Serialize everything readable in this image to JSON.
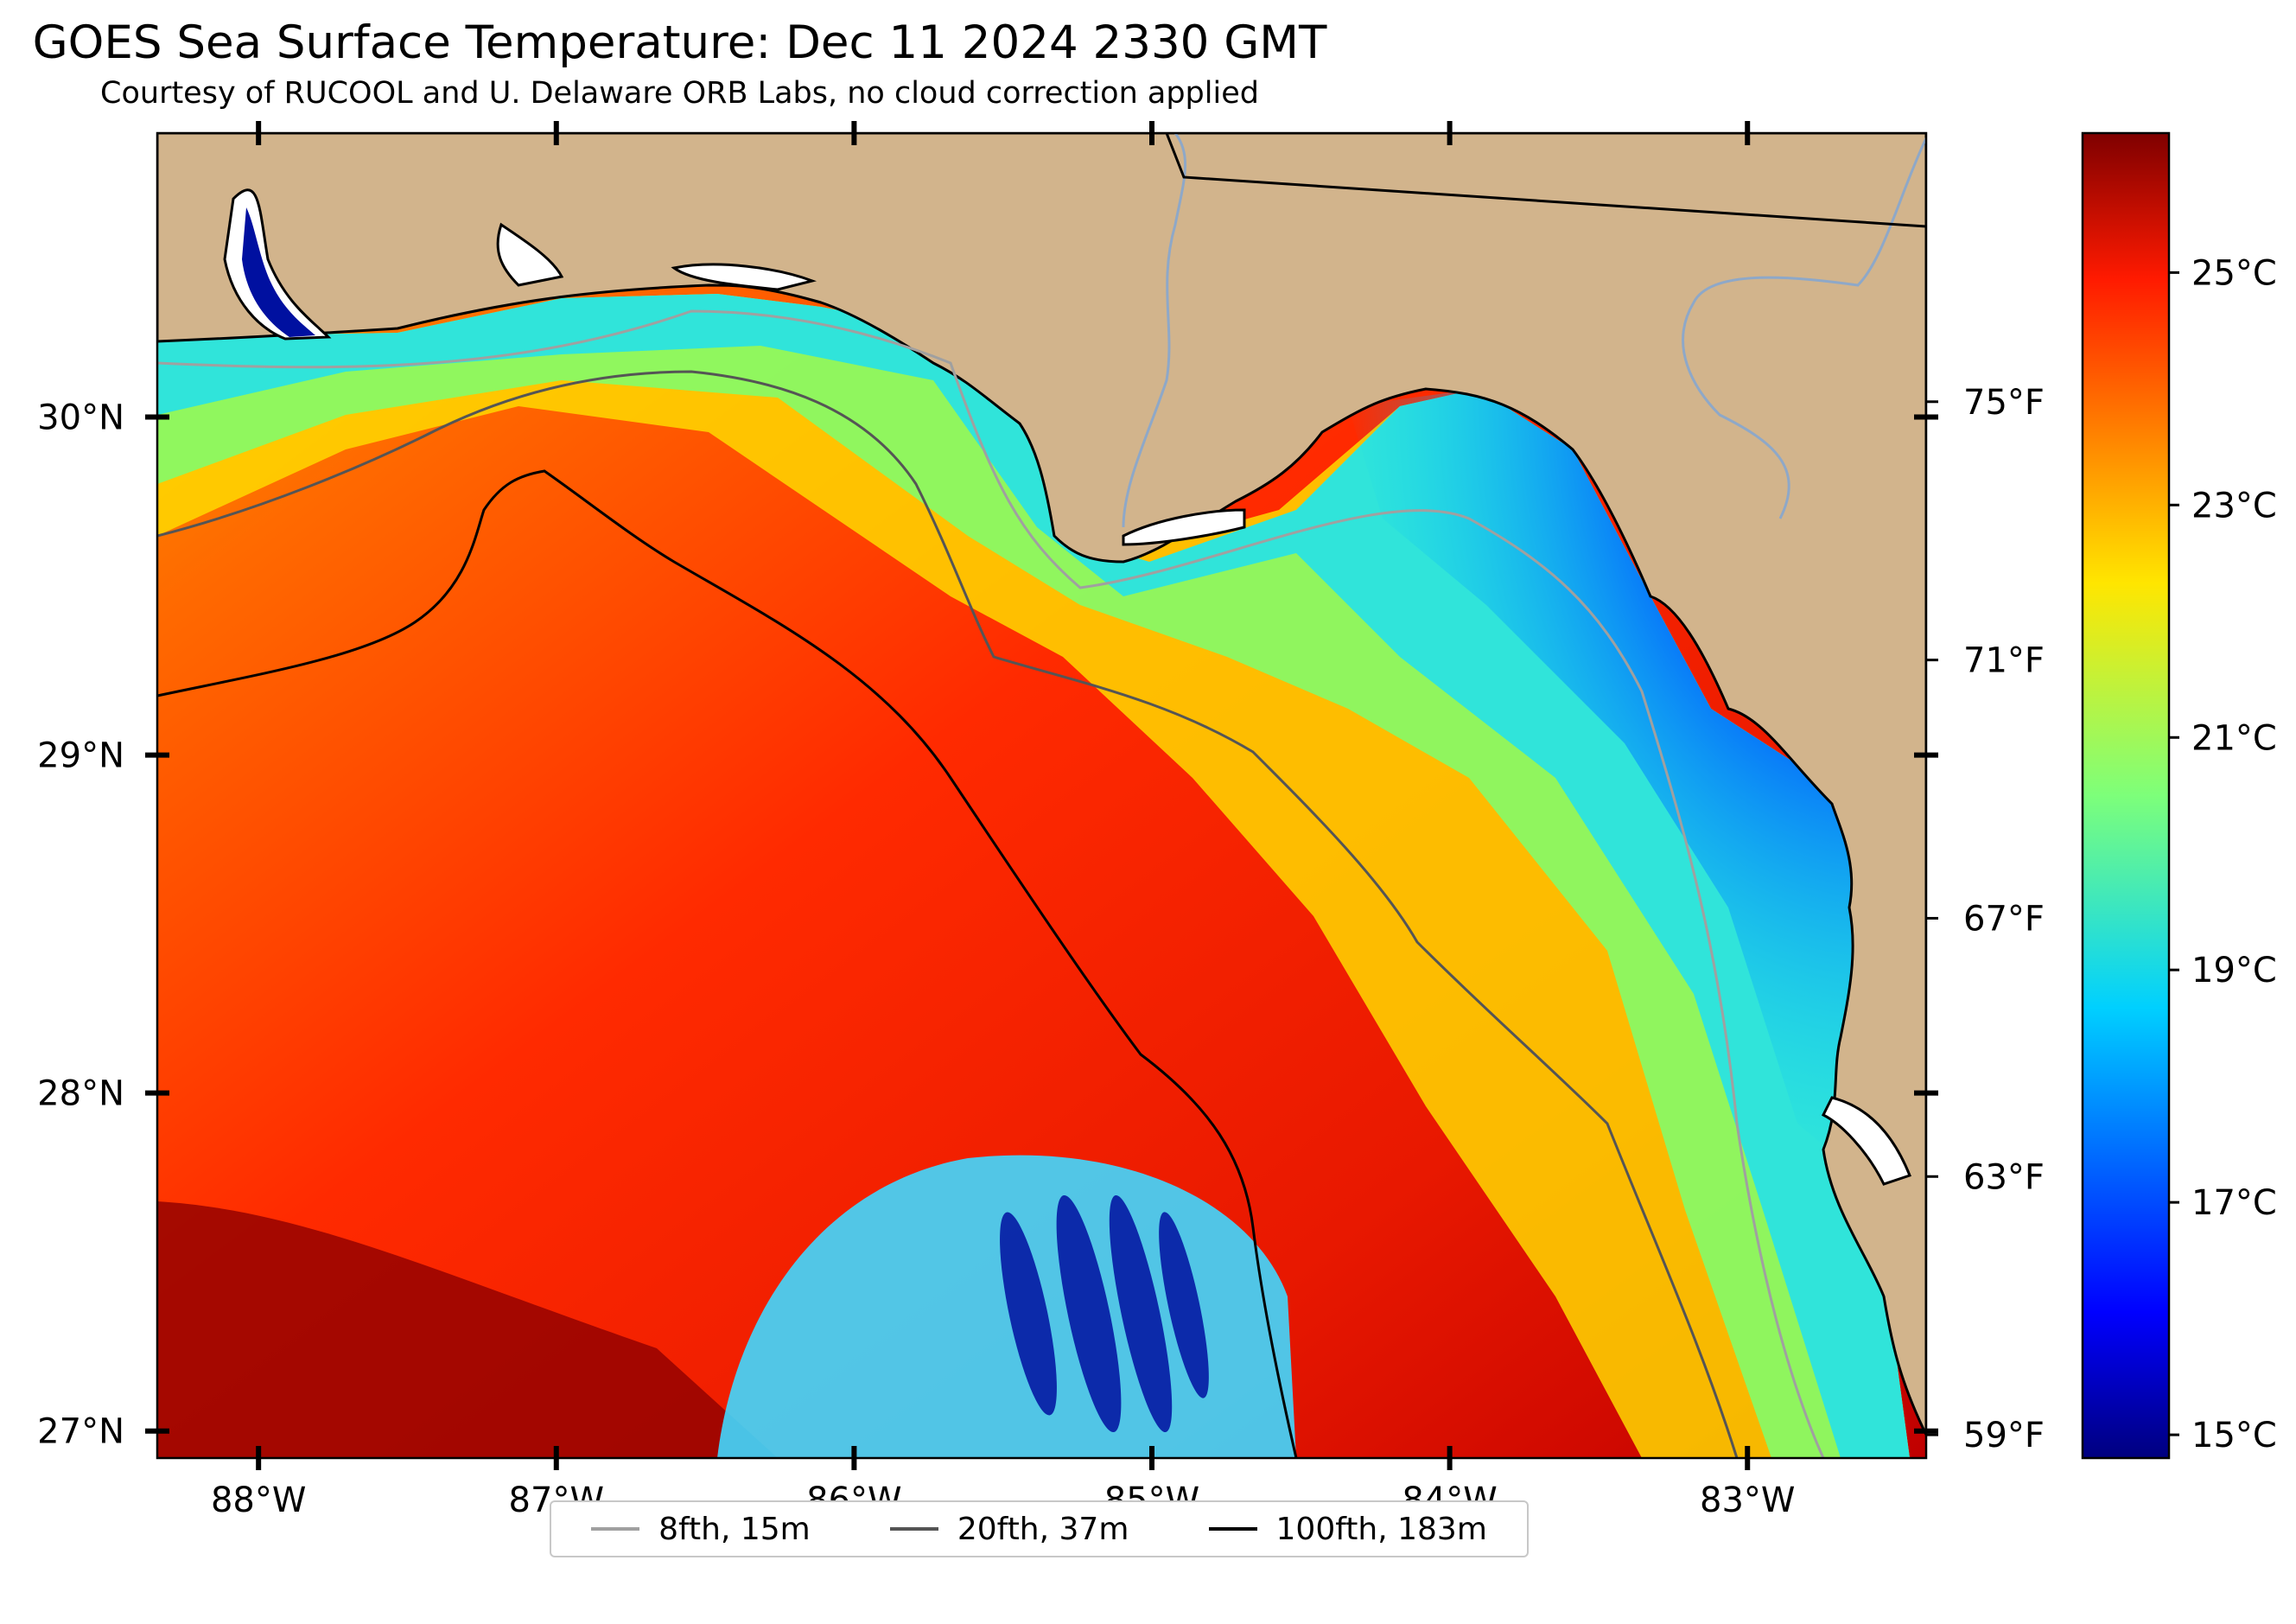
{
  "title": "GOES Sea Surface Temperature: Dec 11 2024 2330 GMT",
  "subtitle": "Courtesy of RUCOOL and U. Delaware ORB Labs, no cloud correction applied",
  "map": {
    "lat_range": [
      26.92,
      30.84
    ],
    "lon_range": [
      -88.34,
      -82.4
    ],
    "land_color": "#d2b48c",
    "coastline_color": "#000000",
    "latitude_labels": [
      "30°N",
      "29°N",
      "28°N",
      "27°N"
    ],
    "latitude_values": [
      30,
      29,
      28,
      27
    ],
    "longitude_labels": [
      "88°W",
      "87°W",
      "86°W",
      "85°W",
      "84°W",
      "83°W"
    ],
    "longitude_values": [
      -88,
      -87,
      -86,
      -85,
      -84,
      -83
    ],
    "fahrenheit_labels": [
      "75°F",
      "71°F",
      "67°F",
      "63°F",
      "59°F"
    ]
  },
  "colorbar": {
    "colormap": "jet",
    "range_c": [
      14.8,
      26.2
    ],
    "labels": [
      "25°C",
      "23°C",
      "21°C",
      "19°C",
      "17°C",
      "15°C"
    ],
    "values": [
      25,
      23,
      21,
      19,
      17,
      15
    ]
  },
  "legend": [
    {
      "label": "8fth, 15m",
      "color": "#a0a0a0"
    },
    {
      "label": "20fth, 37m",
      "color": "#555555"
    },
    {
      "label": "100fth, 183m",
      "color": "#000000"
    }
  ]
}
